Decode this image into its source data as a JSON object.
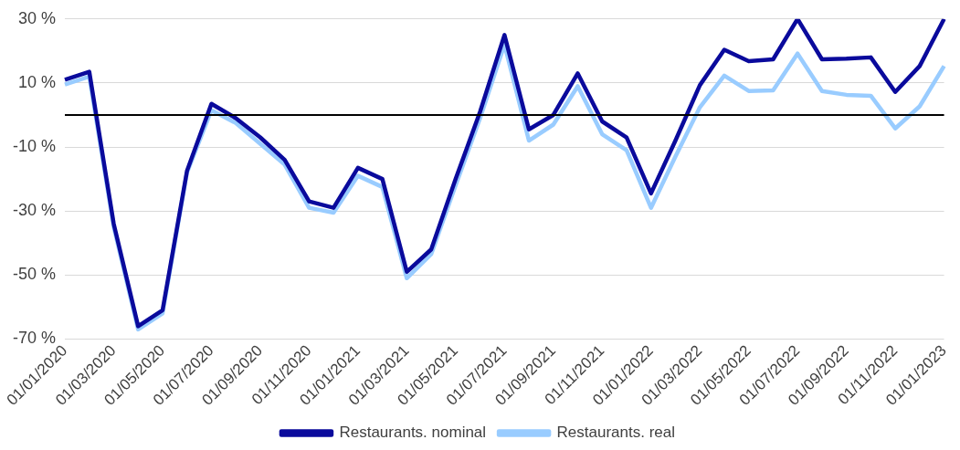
{
  "chart_data": {
    "type": "line",
    "categories": [
      "01/01/2020",
      null,
      "01/03/2020",
      null,
      "01/05/2020",
      null,
      "01/07/2020",
      null,
      "01/09/2020",
      null,
      "01/11/2020",
      null,
      "01/01/2021",
      null,
      "01/03/2021",
      null,
      "01/05/2021",
      null,
      "01/07/2021",
      null,
      "01/09/2021",
      null,
      "01/11/2021",
      null,
      "01/01/2022",
      null,
      "01/03/2022",
      null,
      "01/05/2022",
      null,
      "01/07/2022",
      null,
      "01/09/2022",
      null,
      "01/11/2022",
      null,
      "01/01/2023"
    ],
    "series": [
      {
        "name": "Restaurants. nominal",
        "color": "#0a0a9c",
        "values": [
          11,
          13.5,
          -34,
          -66,
          -61,
          -17.5,
          3.5,
          -1,
          -7,
          -14,
          -27,
          -29,
          -16.5,
          -20,
          -49,
          -42,
          -20,
          1,
          25,
          -4.5,
          0,
          13,
          -2,
          -7,
          -24.5,
          -8,
          9.3,
          20.4,
          16.8,
          17.4,
          30,
          17.4,
          17.6,
          18,
          7.2,
          15.3,
          30
        ]
      },
      {
        "name": "Restaurants. real",
        "color": "#99ccff",
        "values": [
          9.5,
          12,
          -35,
          -67,
          -62,
          -18,
          1.5,
          -2.5,
          -9,
          -15.5,
          -29,
          -30.5,
          -19,
          -22.5,
          -51,
          -43.5,
          -22,
          -1,
          22,
          -8,
          -3,
          9,
          -6,
          -11,
          -29,
          -13,
          2.4,
          12.3,
          7.5,
          7.7,
          19.2,
          7.5,
          6.3,
          6,
          -4.2,
          2.7,
          15.3
        ]
      }
    ],
    "ylim": [
      -70,
      30
    ],
    "yticks": [
      {
        "value": -70,
        "label": "-70 %"
      },
      {
        "value": -50,
        "label": "-50 %"
      },
      {
        "value": -30,
        "label": "-30 %"
      },
      {
        "value": -10,
        "label": "-10 %"
      },
      {
        "value": 10,
        "label": "10 %"
      },
      {
        "value": 30,
        "label": "30 %"
      }
    ],
    "ref_lines": [
      {
        "axis": "y",
        "value": 0,
        "color": "#000000"
      }
    ],
    "grid": "y",
    "legend": "bottom",
    "marker": "none",
    "line_style": "solid"
  }
}
